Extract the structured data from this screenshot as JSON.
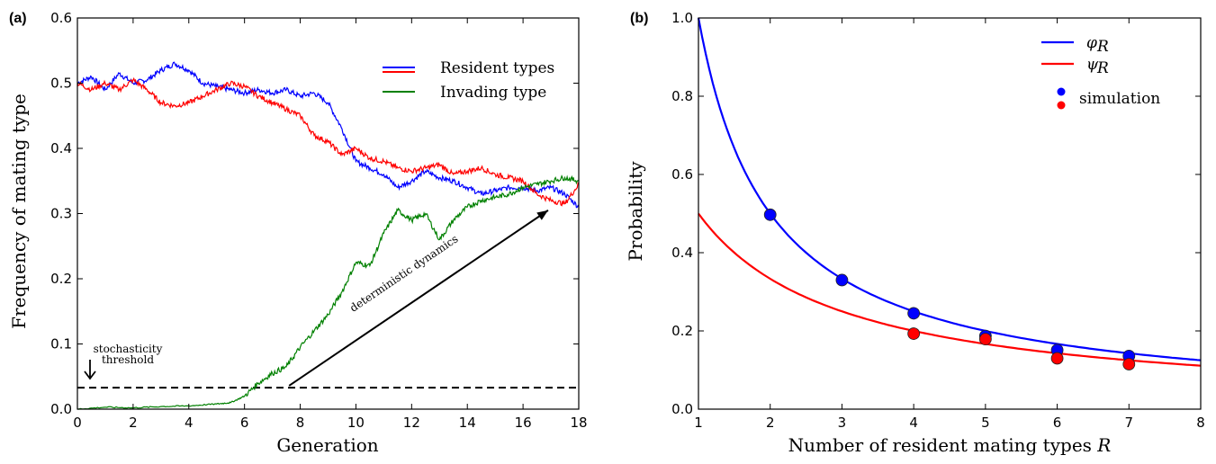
{
  "chart_data": [
    {
      "type": "line",
      "panel_label": "(a)",
      "xlabel": "Generation",
      "ylabel": "Frequency of mating type",
      "xlim": [
        0,
        18
      ],
      "ylim": [
        0,
        0.6
      ],
      "xticks": [
        "0",
        "2",
        "4",
        "6",
        "8",
        "10",
        "12",
        "14",
        "16",
        "18"
      ],
      "yticks": [
        "0.0",
        "0.1",
        "0.2",
        "0.3",
        "0.4",
        "0.5",
        "0.6"
      ],
      "legend_position": "top-right",
      "legend": [
        {
          "label": "Resident types",
          "color": "#0000ff"
        },
        {
          "label": "Invading type",
          "color": "#008000"
        }
      ],
      "series": [
        {
          "color": "#0000ff",
          "x": [
            0,
            0.5,
            1,
            1.5,
            2,
            2.5,
            3,
            3.5,
            4,
            4.5,
            5,
            5.5,
            6,
            6.5,
            7,
            7.5,
            8,
            8.5,
            9,
            9.5,
            10,
            10.5,
            11,
            11.5,
            12,
            12.5,
            13,
            13.5,
            14,
            14.5,
            15,
            15.5,
            16,
            16.5,
            17,
            17.5,
            18
          ],
          "y": [
            0.5,
            0.51,
            0.49,
            0.515,
            0.5,
            0.505,
            0.52,
            0.53,
            0.52,
            0.5,
            0.495,
            0.49,
            0.485,
            0.49,
            0.485,
            0.49,
            0.48,
            0.485,
            0.47,
            0.43,
            0.38,
            0.37,
            0.36,
            0.34,
            0.35,
            0.365,
            0.355,
            0.35,
            0.34,
            0.33,
            0.335,
            0.34,
            0.34,
            0.335,
            0.34,
            0.33,
            0.31
          ]
        },
        {
          "color": "#ff0000",
          "x": [
            0,
            0.5,
            1,
            1.5,
            2,
            2.5,
            3,
            3.5,
            4,
            4.5,
            5,
            5.5,
            6,
            6.5,
            7,
            7.5,
            8,
            8.5,
            9,
            9.5,
            10,
            10.5,
            11,
            11.5,
            12,
            12.5,
            13,
            13.5,
            14,
            14.5,
            15,
            15.5,
            16,
            16.5,
            17,
            17.5,
            18
          ],
          "y": [
            0.5,
            0.49,
            0.5,
            0.49,
            0.505,
            0.49,
            0.47,
            0.465,
            0.47,
            0.48,
            0.49,
            0.5,
            0.495,
            0.48,
            0.47,
            0.46,
            0.45,
            0.42,
            0.41,
            0.39,
            0.4,
            0.385,
            0.38,
            0.37,
            0.365,
            0.37,
            0.375,
            0.36,
            0.365,
            0.37,
            0.36,
            0.355,
            0.35,
            0.33,
            0.32,
            0.315,
            0.345
          ]
        },
        {
          "color": "#008000",
          "x": [
            0,
            1,
            2,
            3,
            4,
            5,
            5.5,
            6,
            6.5,
            7,
            7.5,
            8,
            8.5,
            9,
            9.5,
            10,
            10.5,
            11,
            11.5,
            12,
            12.5,
            13,
            13.5,
            14,
            14.5,
            15,
            15.5,
            16,
            16.5,
            17,
            17.5,
            18
          ],
          "y": [
            0.0,
            0.003,
            0.002,
            0.004,
            0.005,
            0.008,
            0.01,
            0.02,
            0.04,
            0.055,
            0.065,
            0.095,
            0.12,
            0.145,
            0.18,
            0.225,
            0.22,
            0.27,
            0.305,
            0.29,
            0.3,
            0.26,
            0.29,
            0.31,
            0.32,
            0.325,
            0.33,
            0.34,
            0.345,
            0.35,
            0.355,
            0.35
          ]
        }
      ],
      "threshold": {
        "y": 0.033,
        "style": "dashed",
        "label": "stochasticity\nthreshold"
      },
      "arrow_annotation": {
        "from": [
          7.6,
          0.036
        ],
        "to": [
          16.9,
          0.305
        ],
        "label": "deterministic dynamics"
      }
    },
    {
      "type": "line",
      "panel_label": "(b)",
      "xlabel": "Number of resident mating types R",
      "ylabel": "Probability",
      "xlim": [
        1,
        8
      ],
      "ylim": [
        0,
        1.0
      ],
      "xticks": [
        "1",
        "2",
        "3",
        "4",
        "5",
        "6",
        "7",
        "8"
      ],
      "yticks": [
        "0.0",
        "0.2",
        "0.4",
        "0.6",
        "0.8",
        "1.0"
      ],
      "legend_position": "top-right",
      "series": [
        {
          "name": "φ_R",
          "color": "#0000ff",
          "formula": "1/R"
        },
        {
          "name": "ψ_R",
          "color": "#ff0000",
          "formula": "1/(R+1)"
        }
      ],
      "scatter": [
        {
          "name": "simulation",
          "color": "#0000ff",
          "x": [
            2,
            3,
            4,
            5,
            6,
            7
          ],
          "y": [
            0.497,
            0.33,
            0.245,
            0.187,
            0.151,
            0.136
          ]
        },
        {
          "name": "simulation",
          "color": "#ff0000",
          "x": [
            4,
            5,
            6,
            7
          ],
          "y": [
            0.193,
            0.179,
            0.13,
            0.115
          ]
        }
      ],
      "legend": [
        {
          "label": "φ",
          "sub": "R",
          "color": "#0000ff",
          "kind": "line"
        },
        {
          "label": "ψ",
          "sub": "R",
          "color": "#ff0000",
          "kind": "line"
        },
        {
          "label": "simulation",
          "color": "#0000ff",
          "kind": "markers"
        }
      ]
    }
  ]
}
